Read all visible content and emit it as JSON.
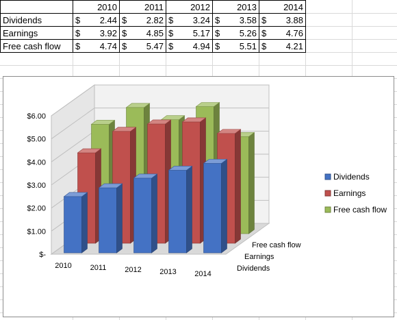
{
  "table": {
    "years": [
      "2010",
      "2011",
      "2012",
      "2013",
      "2014"
    ],
    "currency_symbol": "$",
    "rows": [
      {
        "label": "Dividends",
        "values": [
          "2.44",
          "2.82",
          "3.24",
          "3.58",
          "3.88"
        ]
      },
      {
        "label": "Earnings",
        "values": [
          "3.92",
          "4.85",
          "5.17",
          "5.26",
          "4.76"
        ]
      },
      {
        "label": "Free cash flow",
        "values": [
          "4.74",
          "5.47",
          "4.94",
          "5.51",
          "4.21"
        ]
      }
    ]
  },
  "chart_data": {
    "type": "bar",
    "style": "3d-column",
    "categories": [
      "2010",
      "2011",
      "2012",
      "2013",
      "2014"
    ],
    "series": [
      {
        "name": "Dividends",
        "values": [
          2.44,
          2.82,
          3.24,
          3.58,
          3.88
        ],
        "color": "#4472c4"
      },
      {
        "name": "Earnings",
        "values": [
          3.92,
          4.85,
          5.17,
          5.26,
          4.76
        ],
        "color": "#c0504d"
      },
      {
        "name": "Free cash flow",
        "values": [
          4.74,
          5.47,
          4.94,
          5.51,
          4.21
        ],
        "color": "#9bbb59"
      }
    ],
    "yticks": [
      "$-",
      "$1.00",
      "$2.00",
      "$3.00",
      "$4.00",
      "$5.00",
      "$6.00"
    ],
    "ylim": [
      0,
      6
    ],
    "depth_labels": [
      "Free cash flow",
      "Earnings",
      "Dividends"
    ],
    "legend_position": "right",
    "grid": true
  }
}
